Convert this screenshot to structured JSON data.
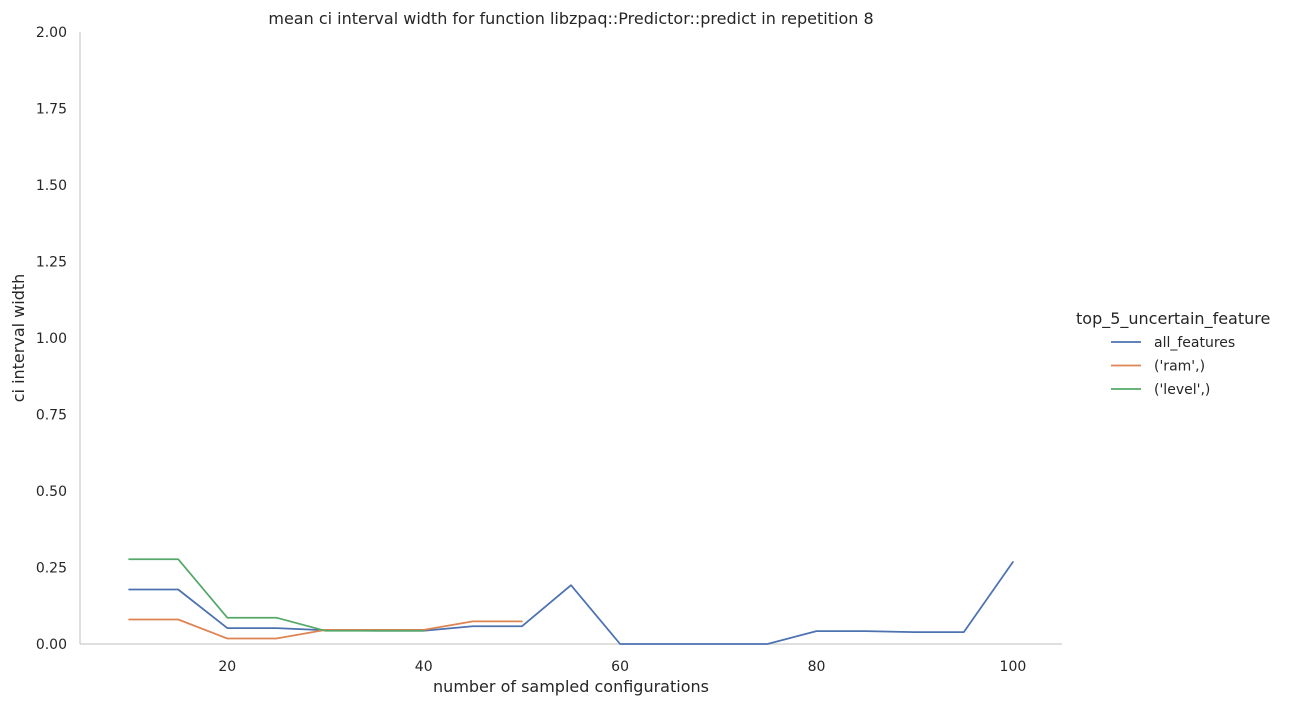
{
  "chart_data": {
    "type": "line",
    "title": "mean ci interval width for function libzpaq::Predictor::predict in repetition 8",
    "xlabel": "number of sampled configurations",
    "ylabel": "ci interval width",
    "xlim": [
      5,
      105
    ],
    "ylim": [
      0,
      2.0
    ],
    "xticks": [
      20,
      40,
      60,
      80,
      100
    ],
    "yticks": [
      0.0,
      0.25,
      0.5,
      0.75,
      1.0,
      1.25,
      1.5,
      1.75,
      2.0
    ],
    "ytick_labels": [
      "0.00",
      "0.25",
      "0.50",
      "0.75",
      "1.00",
      "1.25",
      "1.50",
      "1.75",
      "2.00"
    ],
    "grid": false,
    "legend": {
      "title": "top_5_uncertain_feature",
      "placement": "right"
    },
    "series": [
      {
        "name": "all_features",
        "color": "#4c72b0",
        "x": [
          10,
          15,
          20,
          25,
          30,
          35,
          40,
          45,
          50,
          55,
          60,
          65,
          70,
          75,
          80,
          85,
          90,
          95,
          100
        ],
        "y": [
          0.178,
          0.178,
          0.052,
          0.052,
          0.045,
          0.043,
          0.043,
          0.058,
          0.058,
          0.192,
          0.0,
          0.0,
          0.0,
          0.0,
          0.042,
          0.042,
          0.039,
          0.039,
          0.268
        ]
      },
      {
        "name": "('ram',)",
        "color": "#dd8452",
        "x": [
          10,
          15,
          20,
          25,
          30,
          35,
          40,
          45,
          50
        ],
        "y": [
          0.08,
          0.08,
          0.018,
          0.018,
          0.046,
          0.046,
          0.046,
          0.074,
          0.074
        ]
      },
      {
        "name": "('level',)",
        "color": "#55a868",
        "x": [
          10,
          15,
          20,
          25,
          30,
          35,
          40
        ],
        "y": [
          0.277,
          0.277,
          0.086,
          0.086,
          0.043,
          0.043,
          0.043
        ]
      }
    ]
  }
}
